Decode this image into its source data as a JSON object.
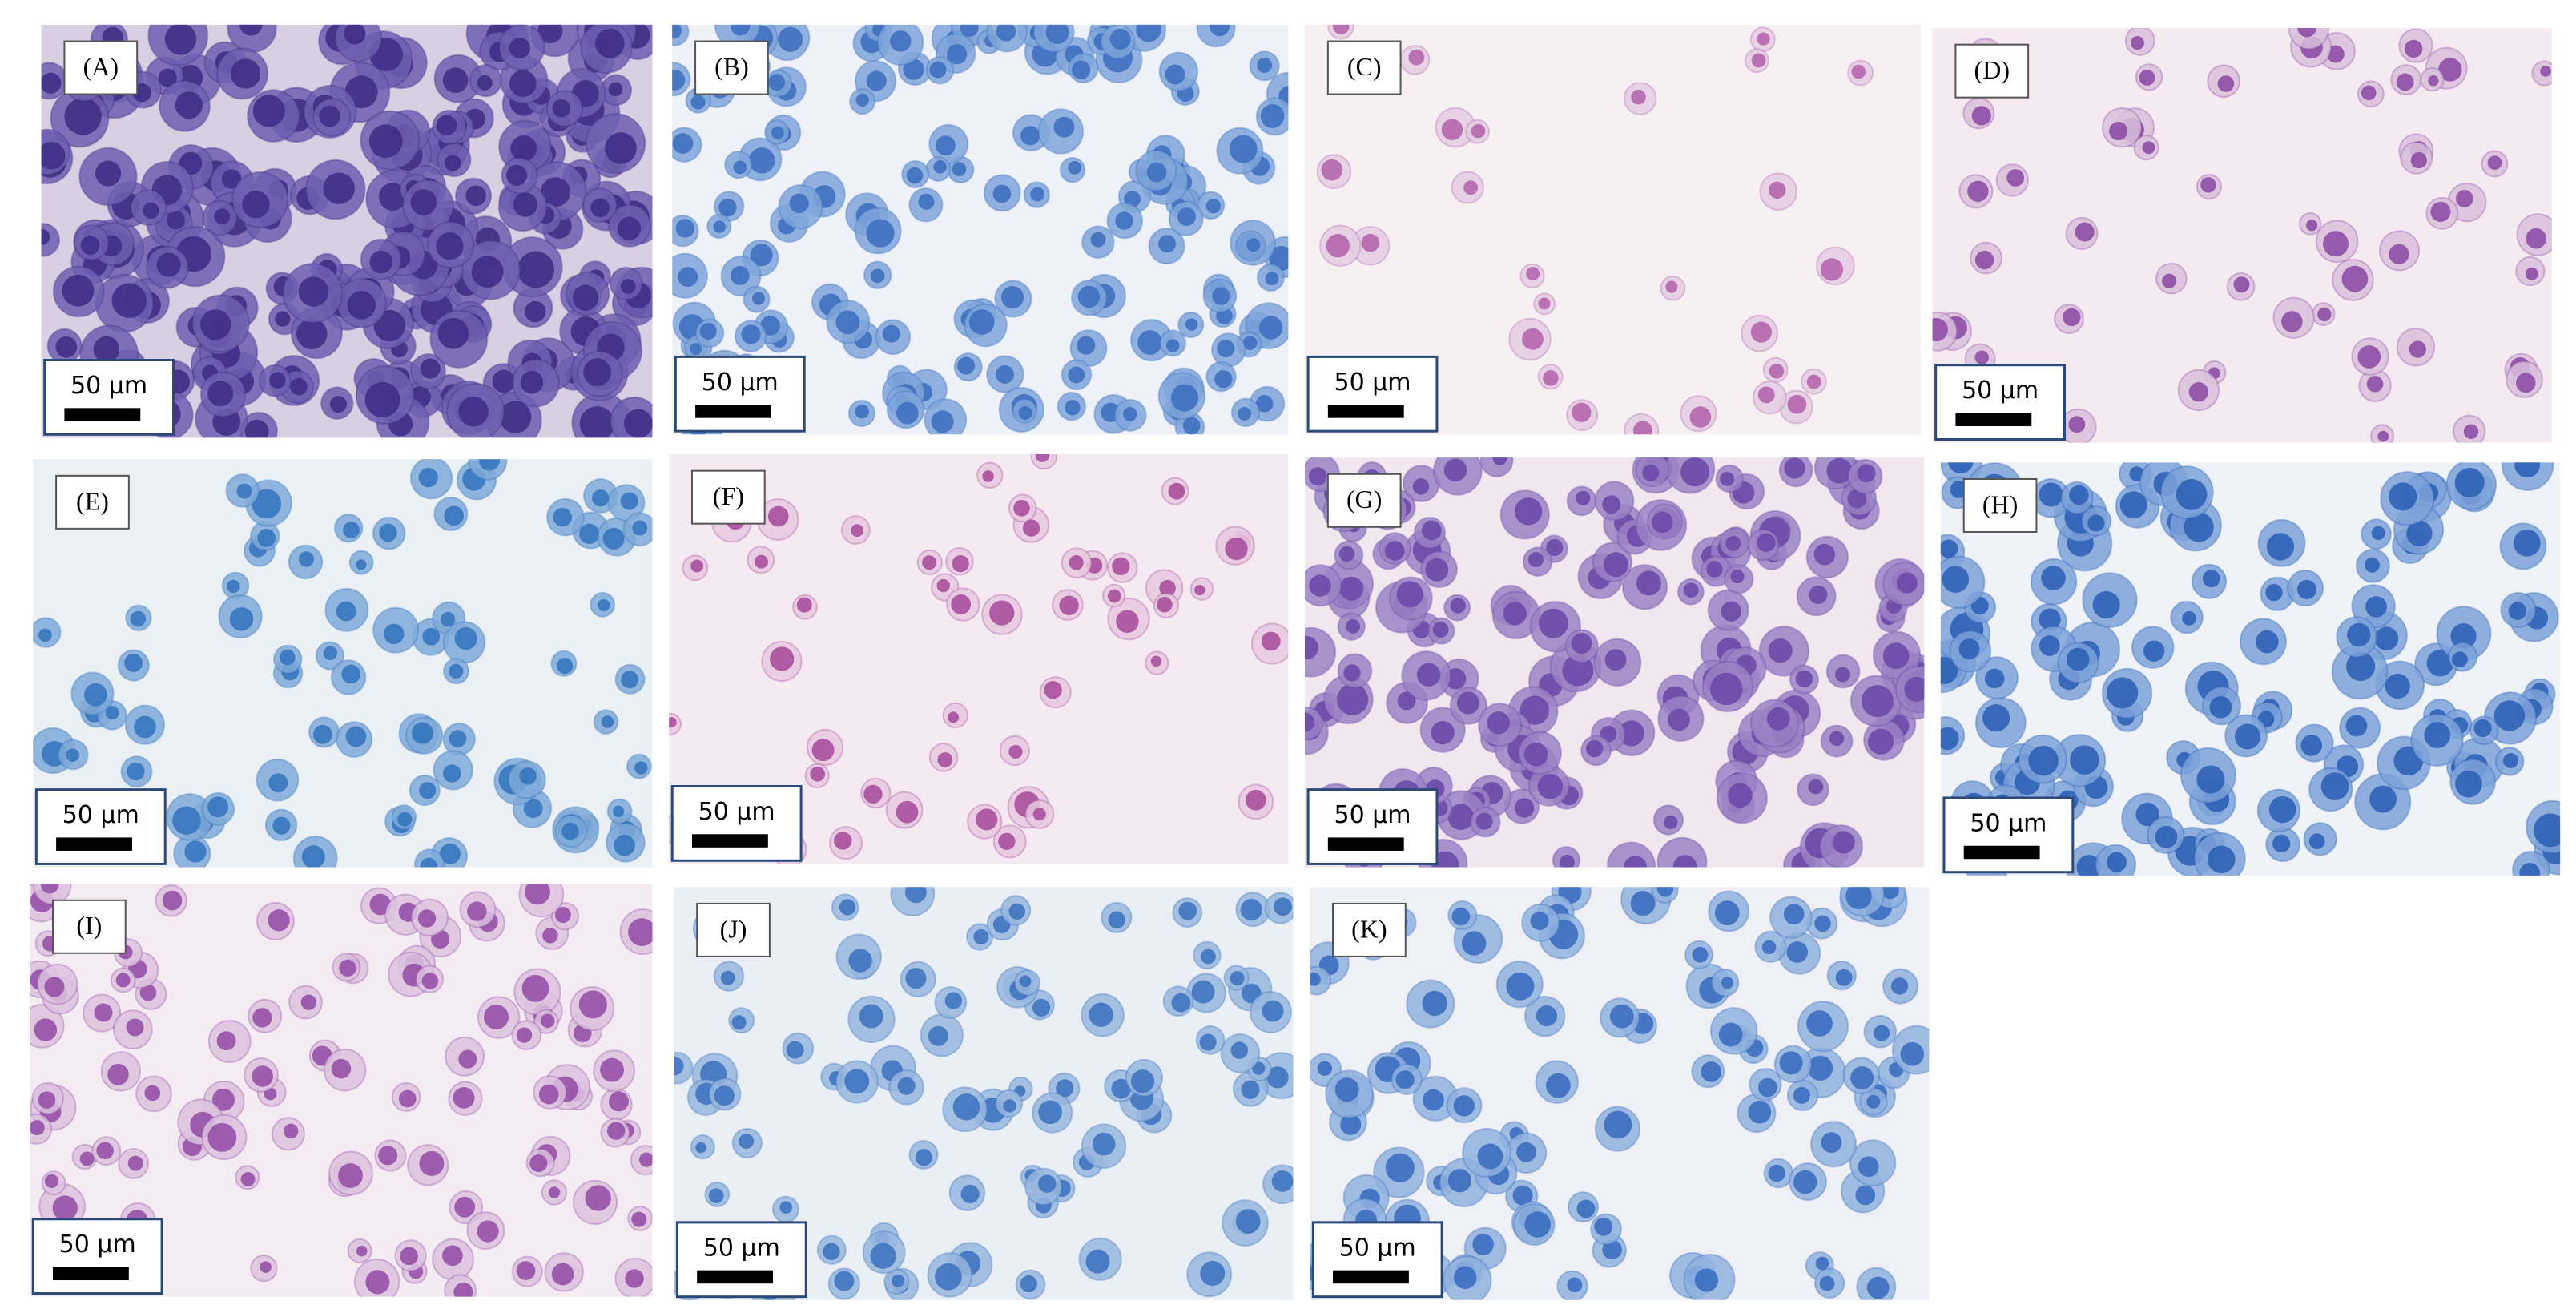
{
  "panels": [
    {
      "label": "(A)",
      "scale": "50 µm"
    },
    {
      "label": "(B)",
      "scale": "50 µm"
    },
    {
      "label": "(C)",
      "scale": "50 µm"
    },
    {
      "label": "(D)",
      "scale": "50 µm"
    },
    {
      "label": "(E)",
      "scale": "50 µm"
    },
    {
      "label": "(F)",
      "scale": "50 µm"
    },
    {
      "label": "(G)",
      "scale": "50 µm"
    },
    {
      "label": "(H)",
      "scale": "50 µm"
    },
    {
      "label": "(I)",
      "scale": "50 µm"
    },
    {
      "label": "(J)",
      "scale": "50 µm"
    },
    {
      "label": "(K)",
      "scale": "50 µm"
    }
  ]
}
